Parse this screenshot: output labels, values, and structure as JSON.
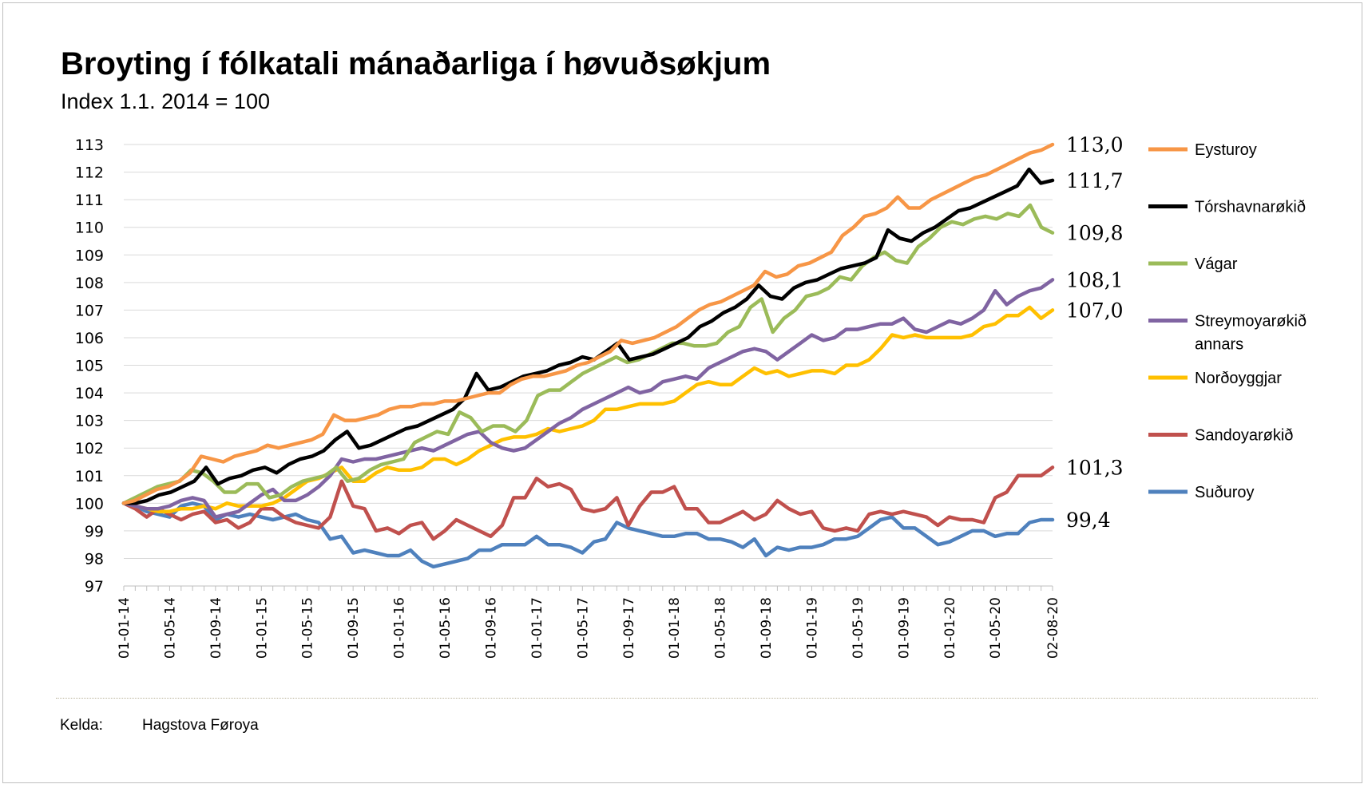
{
  "title": "Broyting í fólkatali mánaðarliga í høvuðsøkjum",
  "subtitle": "Index 1.1. 2014 = 100",
  "source": {
    "label": "Kelda:",
    "value": "Hagstova Føroya"
  },
  "chart_data": {
    "type": "line",
    "title": "Broyting í fólkatali mánaðarliga í høvuðsøkjum",
    "subtitle": "Index 1.1. 2014 = 100",
    "xlabel": "",
    "ylabel": "",
    "ylim": [
      97,
      113
    ],
    "yticks": [
      97,
      98,
      99,
      100,
      101,
      102,
      103,
      104,
      105,
      106,
      107,
      108,
      109,
      110,
      111,
      112,
      113
    ],
    "grid": true,
    "legend_position": "right",
    "x_tick_labels": [
      "01-01-14",
      "01-05-14",
      "01-09-14",
      "01-01-15",
      "01-05-15",
      "01-09-15",
      "01-01-16",
      "01-05-16",
      "01-09-16",
      "01-01-17",
      "01-05-17",
      "01-09-17",
      "01-01-18",
      "01-05-18",
      "01-09-18",
      "01-01-19",
      "01-05-19",
      "01-09-19",
      "01-01-20",
      "01-05-20",
      "02-08-20"
    ],
    "x_start": "2014-01",
    "series": [
      {
        "name": "Eysturoy",
        "color": "#f79646",
        "end_label": "113,0",
        "values": [
          100,
          100.1,
          100.3,
          100.5,
          100.6,
          100.8,
          101.1,
          101.7,
          101.6,
          101.5,
          101.7,
          101.8,
          101.9,
          102.1,
          102.0,
          102.1,
          102.2,
          102.3,
          102.5,
          103.2,
          103.0,
          103.0,
          103.1,
          103.2,
          103.4,
          103.5,
          103.5,
          103.6,
          103.6,
          103.7,
          103.7,
          103.8,
          103.9,
          104.0,
          104.0,
          104.3,
          104.5,
          104.6,
          104.6,
          104.7,
          104.8,
          105.0,
          105.1,
          105.3,
          105.5,
          105.9,
          105.8,
          105.9,
          106.0,
          106.2,
          106.4,
          106.7,
          107.0,
          107.2,
          107.3,
          107.5,
          107.7,
          107.9,
          108.4,
          108.2,
          108.3,
          108.6,
          108.7,
          108.9,
          109.1,
          109.7,
          110.0,
          110.4,
          110.5,
          110.7,
          111.1,
          110.7,
          110.7,
          111.0,
          111.2,
          111.4,
          111.6,
          111.8,
          111.9,
          112.1,
          112.3,
          112.5,
          112.7,
          112.8,
          113.0
        ]
      },
      {
        "name": "Tórshavnarøkið",
        "color": "#000000",
        "end_label": "111,7",
        "values": [
          100,
          100.0,
          100.1,
          100.3,
          100.4,
          100.6,
          100.8,
          101.3,
          100.7,
          100.9,
          101.0,
          101.2,
          101.3,
          101.1,
          101.4,
          101.6,
          101.7,
          101.9,
          102.3,
          102.6,
          102.0,
          102.1,
          102.3,
          102.5,
          102.7,
          102.8,
          103.0,
          103.2,
          103.4,
          103.8,
          104.7,
          104.1,
          104.2,
          104.4,
          104.6,
          104.7,
          104.8,
          105.0,
          105.1,
          105.3,
          105.2,
          105.5,
          105.8,
          105.2,
          105.3,
          105.4,
          105.6,
          105.8,
          106.0,
          106.4,
          106.6,
          106.9,
          107.1,
          107.4,
          107.9,
          107.5,
          107.4,
          107.8,
          108.0,
          108.1,
          108.3,
          108.5,
          108.6,
          108.7,
          108.9,
          109.9,
          109.6,
          109.5,
          109.8,
          110.0,
          110.3,
          110.6,
          110.7,
          110.9,
          111.1,
          111.3,
          111.5,
          112.1,
          111.6,
          111.7
        ]
      },
      {
        "name": "Vágar",
        "color": "#9bbb59",
        "end_label": "109,8",
        "values": [
          100,
          100.2,
          100.4,
          100.6,
          100.7,
          100.8,
          101.2,
          101.1,
          100.8,
          100.4,
          100.4,
          100.7,
          100.7,
          100.2,
          100.3,
          100.6,
          100.8,
          100.9,
          101.0,
          101.3,
          100.8,
          100.9,
          101.2,
          101.4,
          101.5,
          101.6,
          102.2,
          102.4,
          102.6,
          102.5,
          103.3,
          103.1,
          102.6,
          102.8,
          102.8,
          102.6,
          103.0,
          103.9,
          104.1,
          104.1,
          104.4,
          104.7,
          104.9,
          105.1,
          105.3,
          105.1,
          105.2,
          105.4,
          105.6,
          105.8,
          105.8,
          105.7,
          105.7,
          105.8,
          106.2,
          106.4,
          107.1,
          107.4,
          106.2,
          106.7,
          107.0,
          107.5,
          107.6,
          107.8,
          108.2,
          108.1,
          108.6,
          108.9,
          109.1,
          108.8,
          108.7,
          109.3,
          109.6,
          110.0,
          110.2,
          110.1,
          110.3,
          110.4,
          110.3,
          110.5,
          110.4,
          110.8,
          110.0,
          109.8
        ]
      },
      {
        "name": "Streymoyarøkið annars",
        "color": "#8064a2",
        "end_label": "108,1",
        "values": [
          100,
          99.9,
          99.8,
          99.8,
          99.9,
          100.1,
          100.2,
          100.1,
          99.5,
          99.6,
          99.7,
          100.0,
          100.3,
          100.5,
          100.1,
          100.1,
          100.3,
          100.6,
          101.0,
          101.6,
          101.5,
          101.6,
          101.6,
          101.7,
          101.8,
          101.9,
          102.0,
          101.9,
          102.1,
          102.3,
          102.5,
          102.6,
          102.2,
          102.0,
          101.9,
          102.0,
          102.3,
          102.6,
          102.9,
          103.1,
          103.4,
          103.6,
          103.8,
          104.0,
          104.2,
          104.0,
          104.1,
          104.4,
          104.5,
          104.6,
          104.5,
          104.9,
          105.1,
          105.3,
          105.5,
          105.6,
          105.5,
          105.2,
          105.5,
          105.8,
          106.1,
          105.9,
          106.0,
          106.3,
          106.3,
          106.4,
          106.5,
          106.5,
          106.7,
          106.3,
          106.2,
          106.4,
          106.6,
          106.5,
          106.7,
          107.0,
          107.7,
          107.2,
          107.5,
          107.7,
          107.8,
          108.1
        ]
      },
      {
        "name": "Norðoyggjar",
        "color": "#ffc000",
        "end_label": "107,0",
        "values": [
          100,
          99.9,
          99.8,
          99.7,
          99.7,
          99.8,
          99.8,
          99.9,
          99.8,
          100.0,
          99.9,
          99.9,
          99.9,
          100.0,
          100.2,
          100.5,
          100.8,
          100.9,
          101.1,
          101.3,
          100.8,
          100.8,
          101.1,
          101.3,
          101.2,
          101.2,
          101.3,
          101.6,
          101.6,
          101.4,
          101.6,
          101.9,
          102.1,
          102.3,
          102.4,
          102.4,
          102.5,
          102.7,
          102.6,
          102.7,
          102.8,
          103.0,
          103.4,
          103.4,
          103.5,
          103.6,
          103.6,
          103.6,
          103.7,
          104.0,
          104.3,
          104.4,
          104.3,
          104.3,
          104.6,
          104.9,
          104.7,
          104.8,
          104.6,
          104.7,
          104.8,
          104.8,
          104.7,
          105.0,
          105.0,
          105.2,
          105.6,
          106.1,
          106.0,
          106.1,
          106.0,
          106.0,
          106.0,
          106.0,
          106.1,
          106.4,
          106.5,
          106.8,
          106.8,
          107.1,
          106.7,
          107.0
        ]
      },
      {
        "name": "Sandoyarøkið",
        "color": "#c0504d",
        "end_label": "101,3",
        "values": [
          100,
          99.8,
          99.5,
          99.8,
          99.6,
          99.4,
          99.6,
          99.7,
          99.3,
          99.4,
          99.1,
          99.3,
          99.8,
          99.8,
          99.5,
          99.3,
          99.2,
          99.1,
          99.5,
          100.8,
          99.9,
          99.8,
          99.0,
          99.1,
          98.9,
          99.2,
          99.3,
          98.7,
          99.0,
          99.4,
          99.2,
          99.0,
          98.8,
          99.2,
          100.2,
          100.2,
          100.9,
          100.6,
          100.7,
          100.5,
          99.8,
          99.7,
          99.8,
          100.2,
          99.2,
          99.9,
          100.4,
          100.4,
          100.6,
          99.8,
          99.8,
          99.3,
          99.3,
          99.5,
          99.7,
          99.4,
          99.6,
          100.1,
          99.8,
          99.6,
          99.7,
          99.1,
          99.0,
          99.1,
          99.0,
          99.6,
          99.7,
          99.6,
          99.7,
          99.6,
          99.5,
          99.2,
          99.5,
          99.4,
          99.4,
          99.3,
          100.2,
          100.4,
          101.0,
          101.0,
          101.0,
          101.3
        ]
      },
      {
        "name": "Suðuroy",
        "color": "#4f81bd",
        "end_label": "99,4",
        "values": [
          100,
          99.9,
          99.7,
          99.6,
          99.5,
          99.9,
          100.0,
          99.9,
          99.4,
          99.6,
          99.5,
          99.6,
          99.5,
          99.4,
          99.5,
          99.6,
          99.4,
          99.3,
          98.7,
          98.8,
          98.2,
          98.3,
          98.2,
          98.1,
          98.1,
          98.3,
          97.9,
          97.7,
          97.8,
          97.9,
          98.0,
          98.3,
          98.3,
          98.5,
          98.5,
          98.5,
          98.8,
          98.5,
          98.5,
          98.4,
          98.2,
          98.6,
          98.7,
          99.3,
          99.1,
          99.0,
          98.9,
          98.8,
          98.8,
          98.9,
          98.9,
          98.7,
          98.7,
          98.6,
          98.4,
          98.7,
          98.1,
          98.4,
          98.3,
          98.4,
          98.4,
          98.5,
          98.7,
          98.7,
          98.8,
          99.1,
          99.4,
          99.5,
          99.1,
          99.1,
          98.8,
          98.5,
          98.6,
          98.8,
          99.0,
          99.0,
          98.8,
          98.9,
          98.9,
          99.3,
          99.4,
          99.4
        ]
      }
    ]
  }
}
